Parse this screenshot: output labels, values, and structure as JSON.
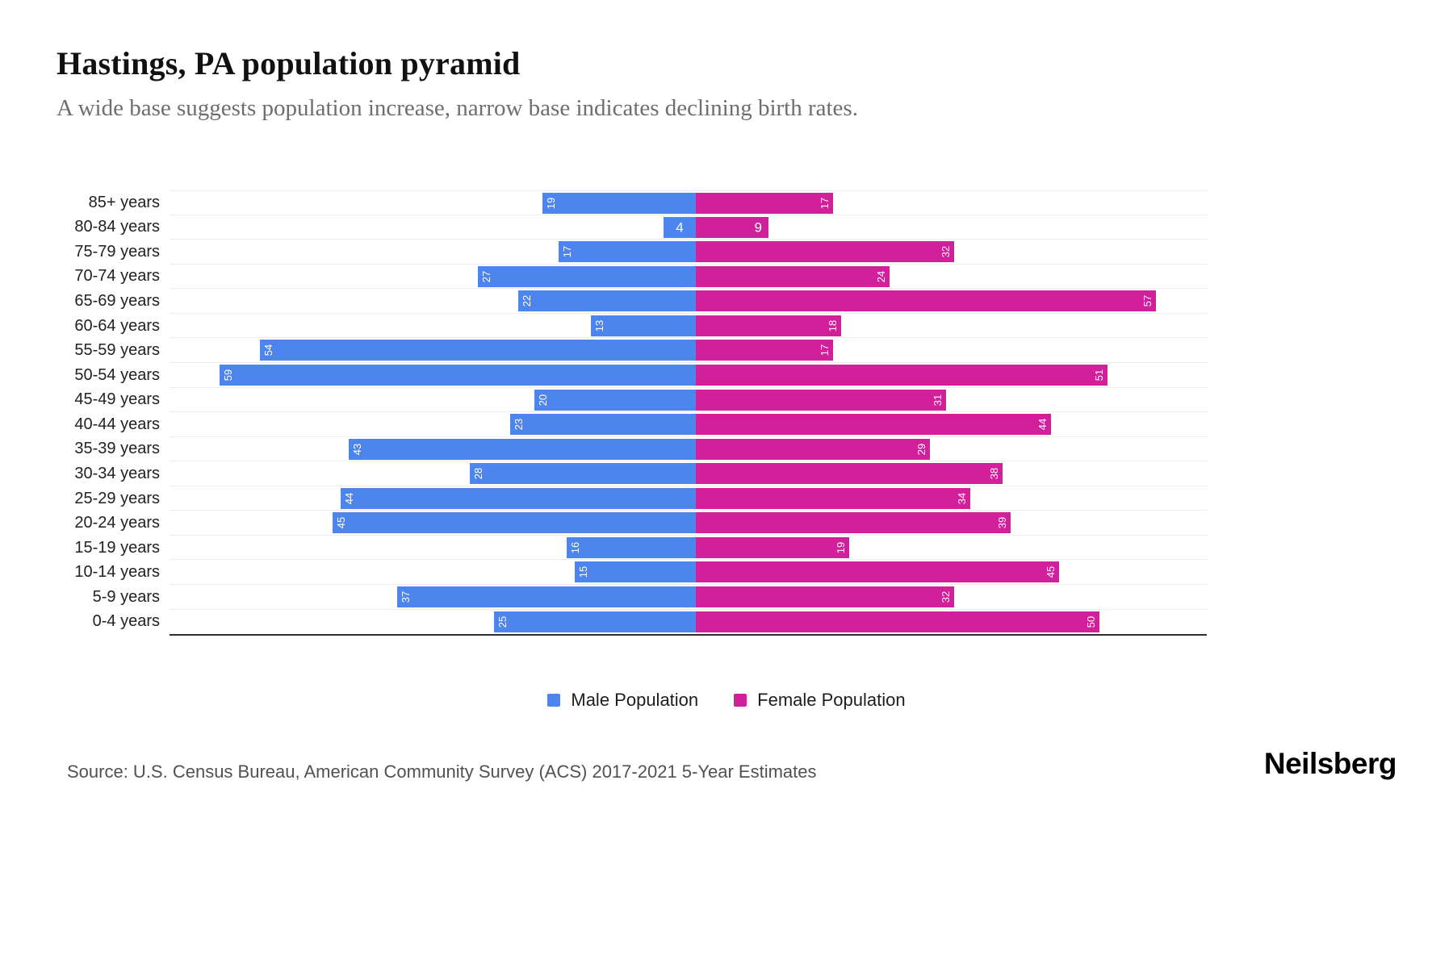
{
  "title": "Hastings, PA population pyramid",
  "subtitle": "A wide base suggests population increase, narrow base indicates declining birth rates.",
  "legend": {
    "male": "Male Population",
    "female": "Female Population"
  },
  "source": "Source: U.S. Census Bureau, American Community Survey (ACS) 2017-2021 5-Year Estimates",
  "logo": "Neilsberg",
  "colors": {
    "male": "#4d85ee",
    "female": "#d0219b"
  },
  "chart_data": {
    "type": "bar",
    "variant": "population-pyramid",
    "orientation": "horizontal",
    "title": "Hastings, PA population pyramid",
    "categories": [
      "85+ years",
      "80-84 years",
      "75-79 years",
      "70-74 years",
      "65-69 years",
      "60-64 years",
      "55-59 years",
      "50-54 years",
      "45-49 years",
      "40-44 years",
      "35-39 years",
      "30-34 years",
      "25-29 years",
      "20-24 years",
      "15-19 years",
      "10-14 years",
      "5-9 years",
      "0-4 years"
    ],
    "series": [
      {
        "name": "Male Population",
        "side": "left",
        "color": "#4d85ee",
        "values": [
          19,
          4,
          17,
          27,
          22,
          13,
          54,
          59,
          20,
          23,
          43,
          28,
          44,
          45,
          16,
          15,
          37,
          25
        ]
      },
      {
        "name": "Female Population",
        "side": "right",
        "color": "#d0219b",
        "values": [
          17,
          9,
          32,
          24,
          57,
          18,
          17,
          51,
          31,
          44,
          29,
          38,
          34,
          39,
          19,
          45,
          32,
          50
        ]
      }
    ],
    "value_axis_max": 60,
    "grid": "horizontal-light",
    "legend_position": "bottom-center",
    "value_labels": "inside-bar-ends"
  }
}
